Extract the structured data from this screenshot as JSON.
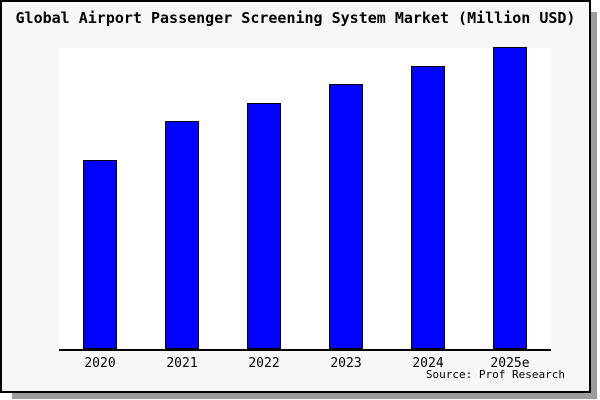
{
  "window": {
    "background": "#f7f7f7",
    "frame_border_color": "#000000",
    "shadow_color": "#9c9c9c"
  },
  "chart_data": {
    "type": "bar",
    "title": "Global Airport Passenger Screening System Market (Million USD)",
    "categories": [
      "2020",
      "2021",
      "2022",
      "2023",
      "2024",
      "2025e"
    ],
    "values": [
      62.5,
      75.2,
      81.5,
      87.8,
      93.8,
      100
    ],
    "value_note": "y-axis is unlabeled; values are relative bar heights with 2025e = 100",
    "ylim": [
      0,
      100
    ],
    "xlabel": "",
    "ylabel": "",
    "grid": false,
    "legend": false,
    "y_axis_visible": false,
    "bar_color": "#0101ff",
    "bar_border_color": "#000000",
    "plot_background": "#ffffff",
    "axis_color": "#000000",
    "source": "Source: Prof Research"
  }
}
